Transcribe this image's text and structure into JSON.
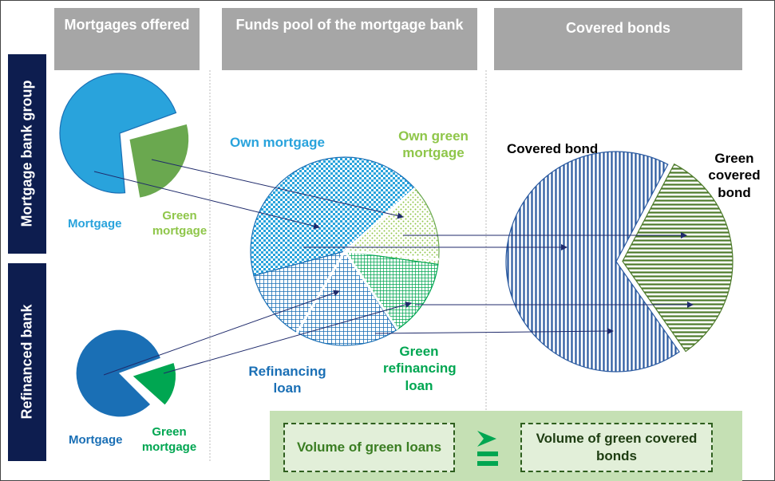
{
  "headers": [
    "Mortgages offered",
    "Funds pool of the mortgage bank",
    "Covered bonds"
  ],
  "side_labels": [
    "Mortgage bank group",
    "Refinanced bank"
  ],
  "labels": {
    "top_mortgage": "Mortgage",
    "top_green_mortgage": "Green mortgage",
    "bottom_mortgage": "Mortgage",
    "bottom_green_mortgage": "Green mortgage",
    "own_mortgage": "Own mortgage",
    "own_green_mortgage": "Own green mortgage",
    "refinancing_loan": "Refinancing loan",
    "green_refinancing_loan": "Green refinancing loan",
    "covered_bond": "Covered bond",
    "green_covered_bond": "Green covered bond"
  },
  "footer": {
    "left": "Volume of green loans",
    "right": "Volume of green covered bonds"
  }
}
